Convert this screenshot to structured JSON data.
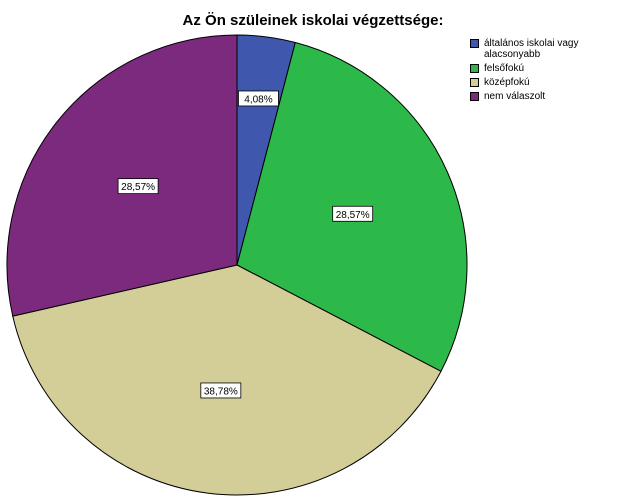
{
  "chart_data": {
    "type": "pie",
    "title": "Az Ön szüleinek iskolai végzettsége:",
    "categories": [
      "általános iskolai vagy\nalacsonyabb",
      "felsőfokú",
      "középfokú",
      "nem válaszolt"
    ],
    "values": [
      4.08,
      28.57,
      38.78,
      28.57
    ],
    "data_labels": [
      "4,08%",
      "28,57%",
      "38,78%",
      "28,57%"
    ],
    "colors": [
      "#3f58ae",
      "#2db84a",
      "#d3ce98",
      "#7b2a7d"
    ],
    "legend_position": "top-right"
  }
}
